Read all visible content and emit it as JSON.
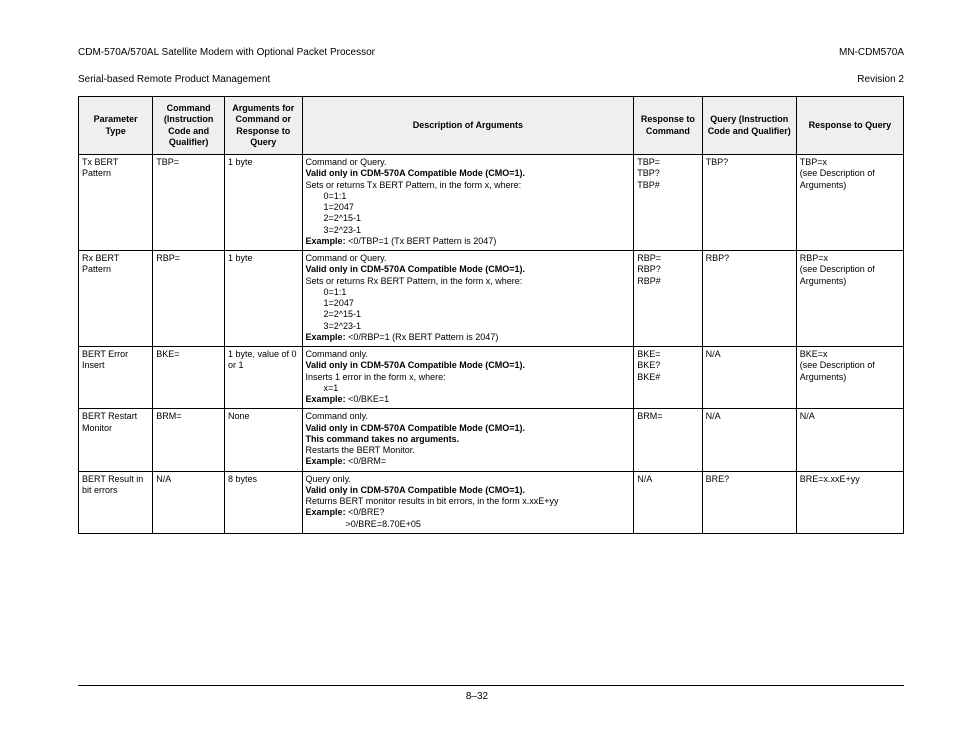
{
  "header": {
    "left_line1": "CDM-570A/570AL Satellite Modem with Optional Packet Processor",
    "left_line2": "Serial-based Remote Product Management",
    "right_line1": "MN-CDM570A",
    "right_line2": "Revision 2"
  },
  "page_number": "8–32",
  "col_widths_pct": [
    9.0,
    8.7,
    9.4,
    40.2,
    8.3,
    11.4,
    13.0
  ],
  "columns": [
    "Parameter Type",
    "Command (Instruction Code and Qualifier)",
    "Arguments for Command or Response to Query",
    "Description of Arguments",
    "Response to Command",
    "Query (Instruction Code and Qualifier)",
    "Response to Query"
  ],
  "rows": [
    {
      "param": "Tx BERT Pattern",
      "cmd": "TBP=",
      "args": "1 byte",
      "desc": [
        {
          "t": "Command or Query."
        },
        {
          "t": "Valid only in CDM-570A Compatible Mode (CMO=1).",
          "b": true
        },
        {
          "t": "Sets or returns Tx BERT Pattern, in the form x, where:"
        },
        {
          "t": "0=1:1",
          "i": 1
        },
        {
          "t": "1=2047",
          "i": 1
        },
        {
          "t": "2=2^15-1",
          "i": 1
        },
        {
          "t": "3=2^23-1",
          "i": 1
        },
        {
          "pre": "Example:",
          "post": " <0/TBP=1 (Tx BERT Pattern is 2047)"
        }
      ],
      "resp_cmd": "TBP=\nTBP?\nTBP#",
      "query": "TBP?",
      "resp_query": "TBP=x\n(see Description of Arguments)"
    },
    {
      "param": "Rx BERT Pattern",
      "cmd": "RBP=",
      "args": "1 byte",
      "desc": [
        {
          "t": "Command or Query."
        },
        {
          "t": "Valid only in CDM-570A Compatible Mode (CMO=1).",
          "b": true
        },
        {
          "t": "Sets or returns Rx BERT Pattern, in the form x, where:"
        },
        {
          "t": "0=1:1",
          "i": 1
        },
        {
          "t": "1=2047",
          "i": 1
        },
        {
          "t": "2=2^15-1",
          "i": 1
        },
        {
          "t": "3=2^23-1",
          "i": 1
        },
        {
          "pre": "Example:",
          "post": " <0/RBP=1 (Rx BERT Pattern is 2047)"
        }
      ],
      "resp_cmd": "RBP=\nRBP?\nRBP#",
      "query": "RBP?",
      "resp_query": "RBP=x\n(see Description of Arguments)"
    },
    {
      "param": "BERT Error Insert",
      "cmd": "BKE=",
      "args": "1 byte, value of 0 or 1",
      "desc": [
        {
          "t": "Command only."
        },
        {
          "t": "Valid only in CDM-570A Compatible Mode (CMO=1).",
          "b": true
        },
        {
          "t": "Inserts 1 error in the form x, where:"
        },
        {
          "t": "x=1",
          "i": 1
        },
        {
          "pre": "Example:",
          "post": " <0/BKE=1"
        }
      ],
      "resp_cmd": "BKE=\nBKE?\nBKE#",
      "query": "N/A",
      "resp_query": "BKE=x\n(see Description of Arguments)"
    },
    {
      "param": "BERT Restart Monitor",
      "cmd": "BRM=",
      "args": "None",
      "desc": [
        {
          "t": "Command only."
        },
        {
          "t": "Valid only in CDM-570A Compatible Mode (CMO=1).",
          "b": true
        },
        {
          "t": "This command takes no arguments.",
          "b": true
        },
        {
          "t": "Restarts the BERT Monitor."
        },
        {
          "pre": "Example:",
          "post": " <0/BRM="
        }
      ],
      "resp_cmd": "BRM=",
      "query": "N/A",
      "resp_query": "N/A"
    },
    {
      "param": "BERT Result in bit errors",
      "cmd": "N/A",
      "args": "8 bytes",
      "desc": [
        {
          "t": "Query only."
        },
        {
          "t": "Valid only in CDM-570A Compatible Mode (CMO=1).",
          "b": true
        },
        {
          "t": "Returns BERT monitor results in bit errors, in the form x.xxE+yy"
        },
        {
          "pre": "Example:",
          "post": " <0/BRE?"
        },
        {
          "t": ">0/BRE=8.70E+05",
          "i": 2
        }
      ],
      "resp_cmd": "N/A",
      "query": "BRE?",
      "resp_query": "BRE=x.xxE+yy"
    }
  ]
}
